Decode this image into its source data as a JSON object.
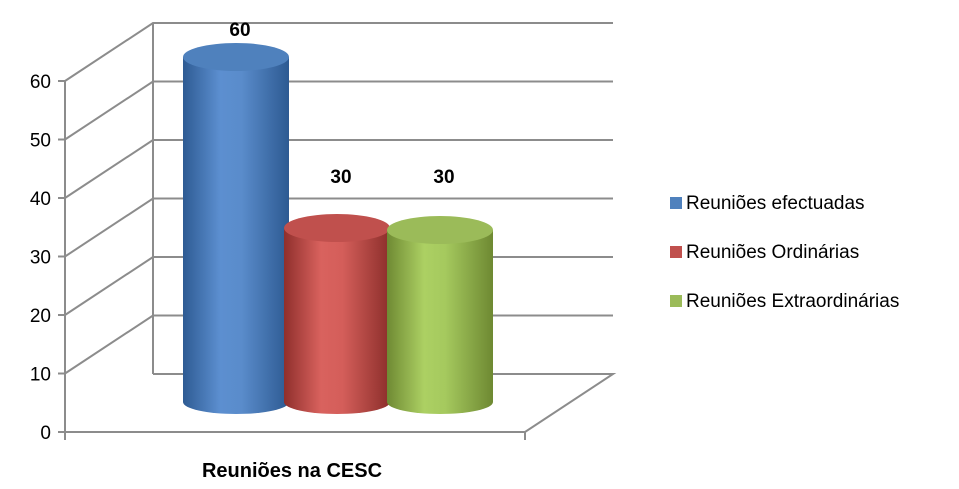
{
  "chart_data": {
    "type": "bar",
    "style": "3d-cylinder",
    "title": "",
    "xlabel": "Reuniões na CESC",
    "ylabel": "",
    "ylim": [
      0,
      60
    ],
    "yticks": [
      0,
      10,
      20,
      30,
      40,
      50,
      60
    ],
    "grid": true,
    "legend_position": "right",
    "series": [
      {
        "name": "Reuniões efectuadas",
        "value": 60,
        "label": "60",
        "color": "#4f81bd"
      },
      {
        "name": "Reuniões Ordinárias",
        "value": 30,
        "label": "30",
        "color": "#c0504d"
      },
      {
        "name": "Reuniões Extraordinárias",
        "value": 30,
        "label": "30",
        "color": "#9bbb59"
      }
    ]
  }
}
